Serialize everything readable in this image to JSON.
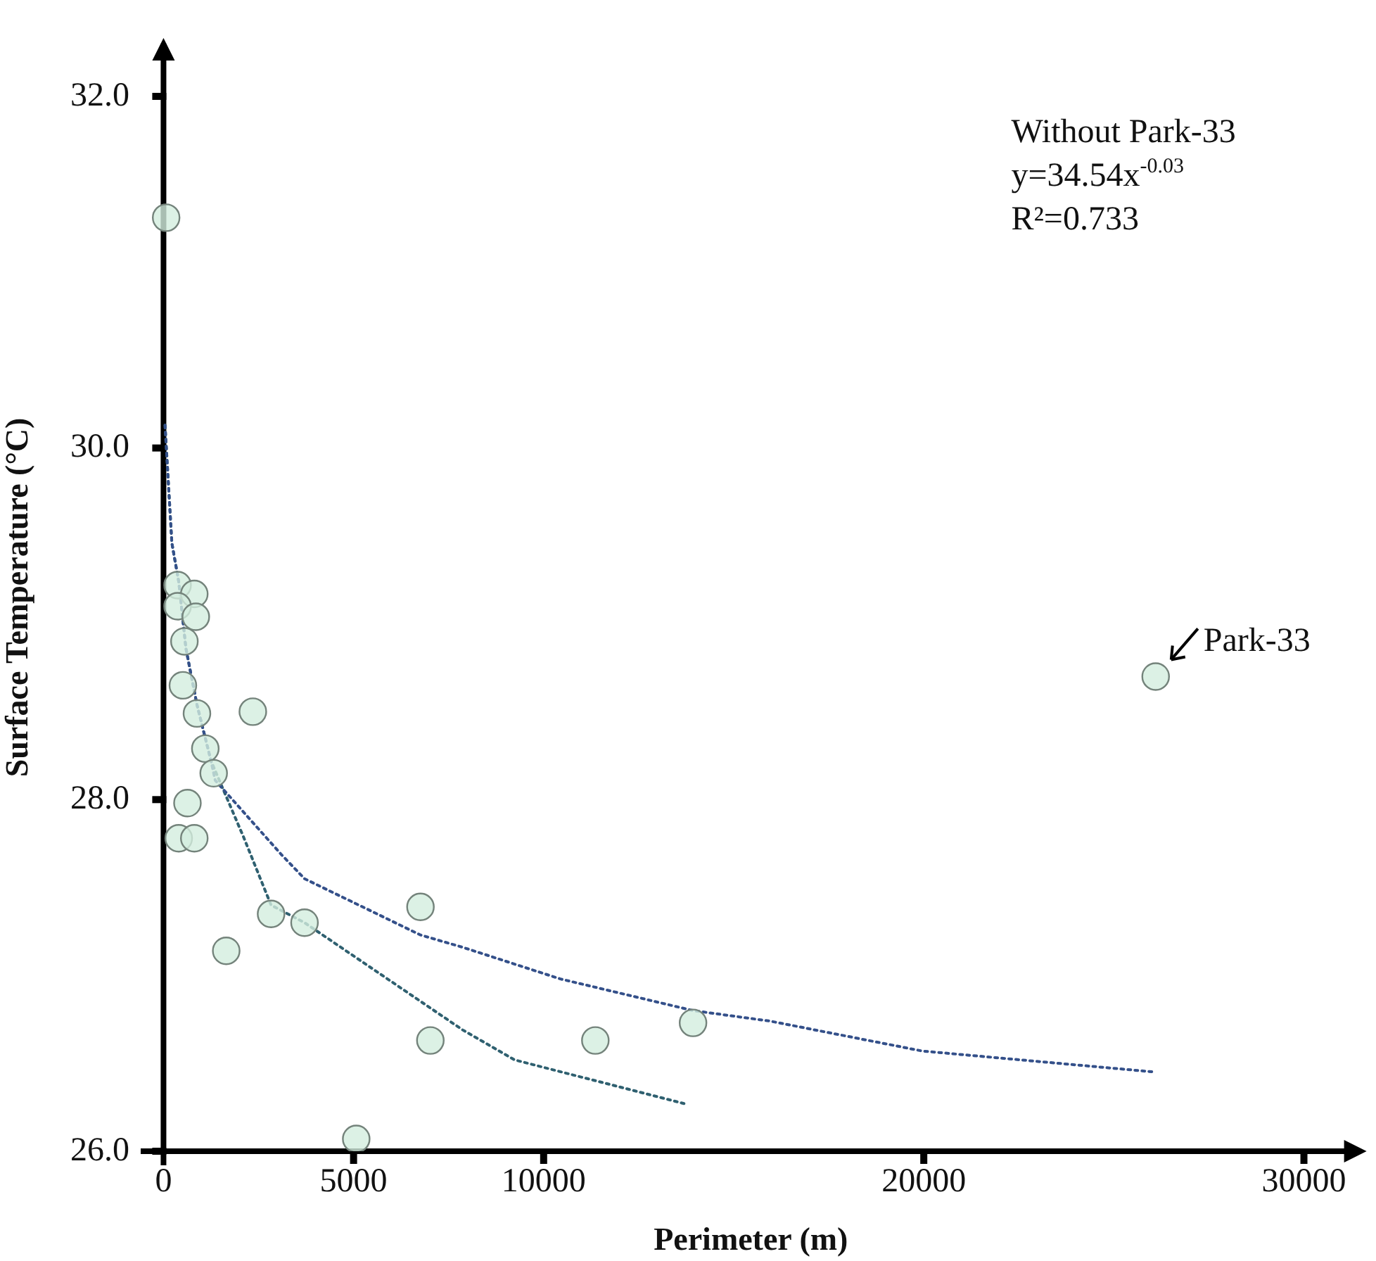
{
  "chart_data": {
    "type": "scatter",
    "xlabel": "Perimeter (m)",
    "ylabel": "Surface Temperature (°C)",
    "xlim": [
      -600,
      31500
    ],
    "xticks": [
      0,
      5000,
      10000,
      20000,
      30000
    ],
    "ylim": [
      26.0,
      32.3
    ],
    "yticks": [
      {
        "value": 26,
        "label": "26.0"
      },
      {
        "value": 28,
        "label": "28.0"
      },
      {
        "value": 30,
        "label": "30.0"
      },
      {
        "value": 32,
        "label": "32.0"
      }
    ],
    "grid": false,
    "legend": false,
    "marker": "circle",
    "series": [
      {
        "type": "scatter",
        "color": "#d3eedf",
        "x": [
          70,
          370,
          810,
          370,
          850,
          550,
          510,
          880,
          2350,
          1100,
          1320,
          630,
          400,
          810,
          1650,
          2830,
          3710,
          6760,
          7020,
          11360,
          13930,
          5070,
          26100
        ],
        "values": [
          31.31,
          29.22,
          29.17,
          29.1,
          29.04,
          28.9,
          28.65,
          28.49,
          28.5,
          28.29,
          28.15,
          27.98,
          27.78,
          27.78,
          27.14,
          27.35,
          27.3,
          27.39,
          26.63,
          26.63,
          26.73,
          26.07,
          28.7
        ]
      },
      {
        "type": "line",
        "color": "#34508a",
        "line_style": "dotted",
        "marker": "none",
        "x": [
          40,
          220,
          400,
          590,
          880,
          1250,
          1360,
          3090,
          3710,
          6760,
          7870,
          10440,
          13930,
          15960,
          19960,
          26100
        ],
        "values": [
          30.13,
          29.46,
          29.24,
          28.86,
          28.54,
          28.22,
          28.11,
          27.69,
          27.55,
          27.23,
          27.16,
          26.98,
          26.8,
          26.74,
          26.57,
          26.45
        ]
      },
      {
        "type": "line",
        "color": "#2f6070",
        "line_style": "dotted",
        "marker": "none",
        "x": [
          40,
          220,
          400,
          590,
          880,
          1250,
          2100,
          2830,
          3710,
          7870,
          9230,
          13710
        ],
        "values": [
          30.13,
          29.46,
          29.24,
          28.86,
          28.54,
          28.22,
          27.79,
          27.4,
          27.3,
          26.69,
          26.52,
          26.27
        ]
      }
    ],
    "annotations": [
      "Without Park-33",
      "y=34.54x$^{-0.03}$",
      "R²=0.733",
      {
        "text": "Park-33",
        "x": 26100,
        "y": 28.7
      }
    ]
  }
}
